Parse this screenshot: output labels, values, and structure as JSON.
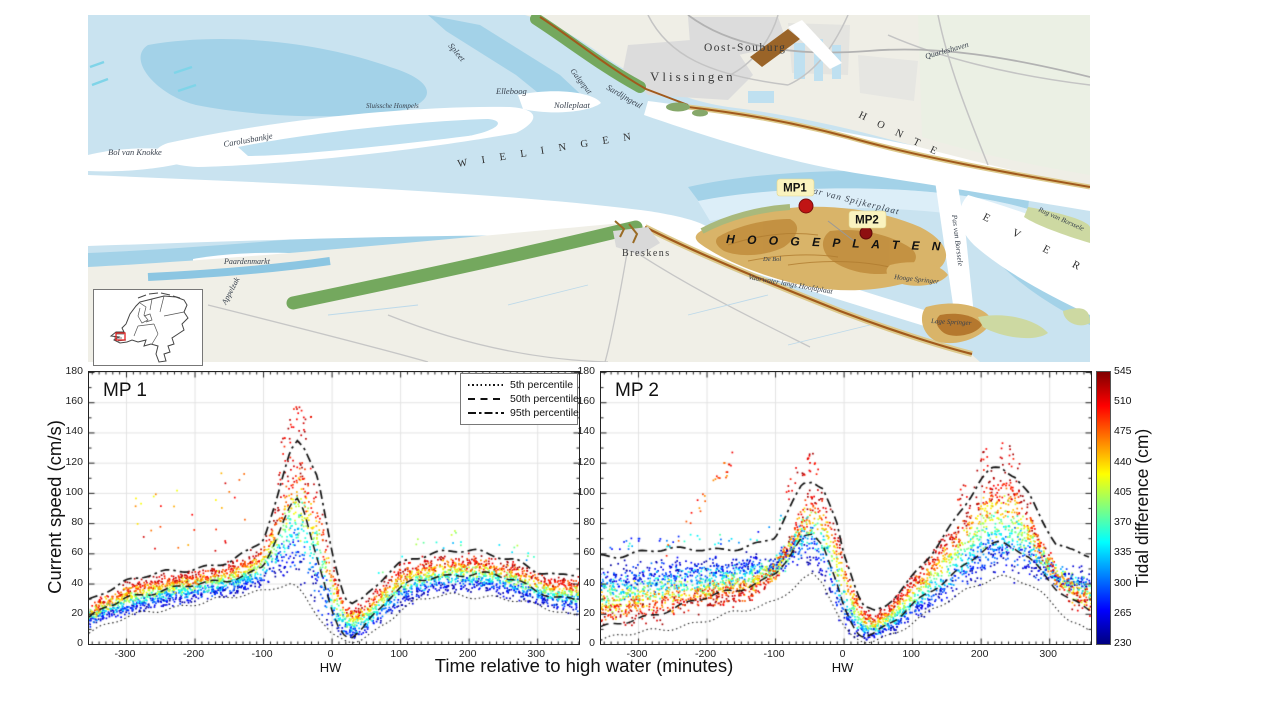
{
  "map": {
    "labels": {
      "spleet": "Spleet",
      "elleboog": "Elleboog",
      "nolleplaat": "Nolleplaat",
      "galgeput": "Galgeput",
      "sardijngeul": "Sardijngeul",
      "vlissingen": "Vlissingen",
      "oost_souburg": "Oost-Souburg",
      "quarleshaven": "Quarleshaven",
      "honte": "H O N T E",
      "wielingen": "W I E L I N G E N",
      "sluissche_hompels": "Sluissche Hompels",
      "bol_van_knokke": "Bol van Knokke",
      "carolusbankje": "Carolusbankje",
      "paardenmarkt": "Paardenmarkt",
      "appelzak": "Appelzak",
      "breskens": "Breskens",
      "schaar_van_spijkerplaat": "Schaar van Spijkerplaat",
      "hooge_platen": "H O O G E   P L A T E N",
      "de_bol": "De Bol",
      "vaarwater_langs_hoofdplaat": "Vaarwater langs Hoofdplaat",
      "hooge_springer": "Hooge Springer",
      "lage_springer": "Lage Springer",
      "pas_van_borssele": "Pas van Borssele",
      "everingen": "E V E R",
      "rug_van_borssele": "Rug van Borssele"
    },
    "markers": [
      {
        "label": "MP1"
      },
      {
        "label": "MP2"
      }
    ],
    "colors": {
      "water": "#c9e3f0",
      "shallow": "#a3d2e8",
      "channel_white": "#ffffff",
      "flat_tan": "#d9b469",
      "flat_core": "#c08c3c",
      "marsh_green": "#74a85e",
      "dike_brown": "#a15a1c",
      "urban_gray": "#dcdcdc",
      "marker_red": "#c01414"
    }
  },
  "figure": {
    "ylabel": "Current speed (cm/s)",
    "xlabel": "Time relative to high water (minutes)",
    "legend": [
      "5th percentile",
      "50th percentile",
      "95th percentile"
    ],
    "colorbar": {
      "label": "Tidal difference (cm)",
      "min": 230,
      "max": 545,
      "ticks": [
        230,
        265,
        300,
        335,
        370,
        405,
        440,
        475,
        510,
        545
      ]
    }
  },
  "chart_data": [
    {
      "type": "scatter",
      "title": "MP 1",
      "xlim": [
        -354,
        361
      ],
      "ylim": [
        0,
        180
      ],
      "xticks": [
        -300,
        -200,
        -100,
        0,
        100,
        200,
        300
      ],
      "yticks": [
        0,
        20,
        40,
        60,
        80,
        100,
        120,
        140,
        160,
        180
      ],
      "x_zero_label": "HW",
      "grid": true,
      "color_by": "tidal difference (cm), jet colormap 230-545",
      "percentile_curves": {
        "x": [
          -360,
          -330,
          -300,
          -270,
          -240,
          -210,
          -180,
          -150,
          -120,
          -100,
          -80,
          -60,
          -50,
          -40,
          -20,
          0,
          10,
          20,
          30,
          45,
          60,
          80,
          100,
          120,
          150,
          180,
          210,
          240,
          270,
          300,
          330,
          360
        ],
        "p5": [
          7,
          12,
          17,
          21,
          24,
          26,
          28,
          30,
          33,
          36,
          39,
          40,
          37,
          32,
          18,
          5,
          3,
          2,
          2,
          4,
          8,
          15,
          22,
          27,
          31,
          33,
          32,
          31,
          28,
          25,
          22,
          19
        ],
        "p50": [
          14,
          24,
          31,
          34,
          36,
          38,
          40,
          43,
          47,
          52,
          70,
          90,
          95,
          88,
          55,
          22,
          12,
          7,
          6,
          10,
          18,
          28,
          36,
          42,
          45,
          46,
          46,
          45,
          42,
          36,
          31,
          29
        ],
        "p95": [
          27,
          36,
          42,
          45,
          47,
          49,
          52,
          55,
          61,
          68,
          95,
          128,
          136,
          132,
          110,
          62,
          45,
          30,
          26,
          28,
          36,
          46,
          54,
          58,
          60,
          61,
          61,
          59,
          56,
          48,
          44,
          46
        ]
      }
    },
    {
      "type": "scatter",
      "title": "MP 2",
      "xlim": [
        -354,
        361
      ],
      "ylim": [
        0,
        180
      ],
      "xticks": [
        -300,
        -200,
        -100,
        0,
        100,
        200,
        300
      ],
      "yticks": [
        0,
        20,
        40,
        60,
        80,
        100,
        120,
        140,
        160,
        180
      ],
      "x_zero_label": "HW",
      "grid": true,
      "color_by": "tidal difference (cm), jet colormap 230-545",
      "percentile_curves": {
        "x": [
          -360,
          -330,
          -300,
          -270,
          -240,
          -210,
          -180,
          -150,
          -120,
          -100,
          -80,
          -60,
          -45,
          -30,
          -10,
          0,
          10,
          20,
          30,
          45,
          60,
          80,
          100,
          130,
          160,
          180,
          200,
          215,
          230,
          250,
          270,
          290,
          310,
          330,
          360
        ],
        "p5": [
          3,
          5,
          7,
          9,
          12,
          15,
          18,
          21,
          25,
          29,
          36,
          43,
          46,
          40,
          20,
          10,
          5,
          3,
          2,
          3,
          5,
          9,
          14,
          22,
          30,
          36,
          41,
          44,
          45,
          43,
          39,
          32,
          24,
          16,
          9
        ],
        "p50": [
          9,
          13,
          17,
          21,
          25,
          29,
          33,
          37,
          42,
          47,
          57,
          69,
          72,
          66,
          40,
          25,
          16,
          9,
          6,
          7,
          11,
          17,
          25,
          36,
          47,
          54,
          61,
          65,
          66,
          63,
          57,
          48,
          38,
          30,
          22
        ],
        "p95": [
          58,
          59,
          61,
          62,
          62,
          63,
          63,
          64,
          66,
          70,
          88,
          106,
          109,
          104,
          80,
          60,
          48,
          34,
          24,
          20,
          24,
          34,
          45,
          62,
          80,
          93,
          108,
          115,
          117,
          112,
          100,
          82,
          66,
          61,
          58
        ]
      }
    }
  ]
}
